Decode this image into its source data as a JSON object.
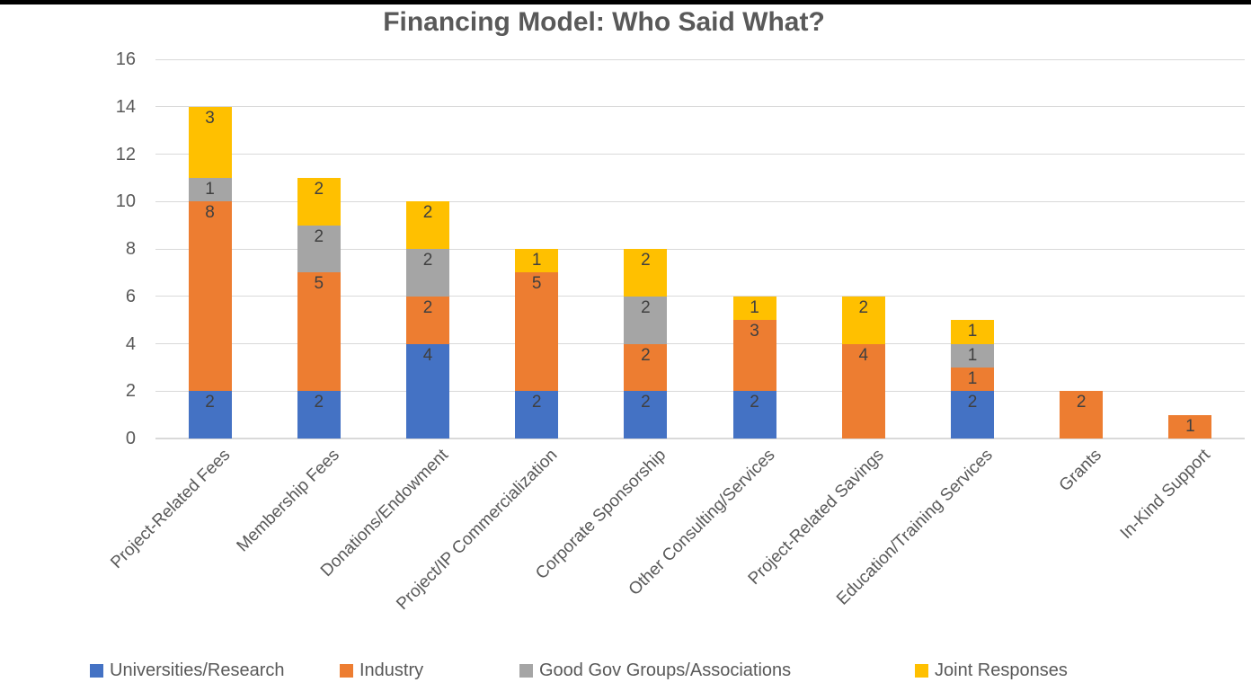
{
  "chart_data": {
    "type": "bar",
    "stacked": true,
    "title": "Financing Model: Who Said What?",
    "categories": [
      "Project-Related Fees",
      "Membership Fees",
      "Donations/Endowment",
      "Project/IP Commercialization",
      "Corporate Sponsorship",
      "Other Consulting/Services",
      "Project-Related Savings",
      "Education/Training Services",
      "Grants",
      "In-Kind Support"
    ],
    "series": [
      {
        "name": "Universities/Research",
        "color": "#4472C4",
        "values": [
          2,
          2,
          4,
          2,
          2,
          2,
          0,
          2,
          0,
          0
        ]
      },
      {
        "name": "Industry",
        "color": "#ED7D31",
        "values": [
          8,
          5,
          2,
          5,
          2,
          3,
          4,
          1,
          2,
          1
        ]
      },
      {
        "name": "Good Gov Groups/Associations",
        "color": "#A5A5A5",
        "values": [
          1,
          2,
          2,
          0,
          2,
          0,
          0,
          1,
          0,
          0
        ]
      },
      {
        "name": "Joint Responses",
        "color": "#FFC000",
        "values": [
          3,
          2,
          2,
          1,
          2,
          1,
          2,
          1,
          0,
          0
        ]
      }
    ],
    "xlabel": "",
    "ylabel": "",
    "ylim": [
      0,
      16
    ],
    "ytick_step": 2,
    "ytick_labels": [
      "0",
      "2",
      "4",
      "6",
      "8",
      "10",
      "12",
      "14",
      "16"
    ],
    "grid": true,
    "legend_position": "bottom",
    "data_labels": "inside-end",
    "colors": {
      "title_text": "#595959",
      "axis_label_text": "#595959",
      "data_label_text": "#404040",
      "gridline": "#D9D9D9",
      "background": "#FFFFFF",
      "top_strip": "#000000"
    }
  }
}
